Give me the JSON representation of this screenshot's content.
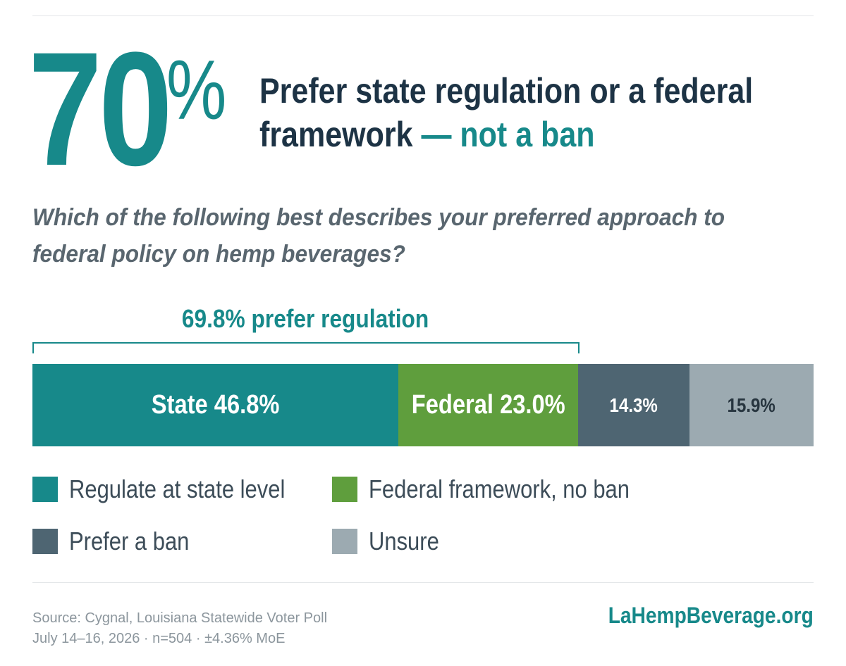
{
  "headline": {
    "stat_number": "70",
    "stat_unit": "%",
    "line1": "Prefer state regulation or a federal",
    "line2_main": "framework",
    "line2_accent": "— not a ban"
  },
  "question": {
    "line1": "Which of the following best describes your preferred approach to",
    "line2": "federal policy on hemp beverages?"
  },
  "colors": {
    "teal": "#17898a",
    "green": "#5f9e3d",
    "slate": "#4e6572",
    "gray": "#9caab1",
    "navy": "#1d3345"
  },
  "chart_data": {
    "type": "bar",
    "stacked": true,
    "orientation": "horizontal",
    "xlim": [
      0,
      100
    ],
    "annotation": "69.8% prefer regulation",
    "segments": [
      {
        "legend": "Regulate at state level",
        "value": 46.8,
        "bar_label": "State 46.8%",
        "color": "#17898a",
        "text_color": "#ffffff"
      },
      {
        "legend": "Federal framework, no ban",
        "value": 23.0,
        "bar_label": "Federal 23.0%",
        "color": "#5f9e3d",
        "text_color": "#ffffff"
      },
      {
        "legend": "Prefer a ban",
        "value": 14.3,
        "bar_label": "14.3%",
        "color": "#4e6572",
        "text_color": "#ffffff"
      },
      {
        "legend": "Unsure",
        "value": 15.9,
        "bar_label": "15.9%",
        "color": "#9caab1",
        "text_color": "#27353f"
      }
    ]
  },
  "footer": {
    "source_line1": "Source: Cygnal, Louisiana Statewide Voter Poll",
    "source_line2": "July 14–16, 2026 · n=504 · ±4.36% MoE",
    "brand": "LaHempBeverage.org"
  }
}
